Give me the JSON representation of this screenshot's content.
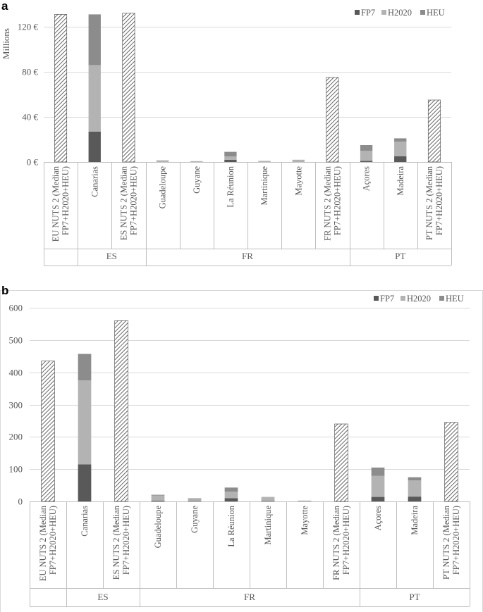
{
  "chart_data": [
    {
      "panel": "a",
      "type": "bar",
      "stacked": true,
      "ylabel": "Millions",
      "ylim": [
        0,
        130
      ],
      "yticks": [
        0,
        40,
        80,
        120
      ],
      "ytick_labels": [
        "0 €",
        "40 €",
        "80 €",
        "120 €"
      ],
      "legend": [
        "FP7",
        "H2020",
        "HEU"
      ],
      "legend_position": "top-right",
      "categories": [
        "EU NUTS 2 (Median FP7+H2020+HEU)",
        "Canarias",
        "ES NUTS 2 (Median FP7+H2020+HEU)",
        "Guadeloupe",
        "Guyane",
        "La Réunion",
        "Martinique",
        "Mayotte",
        "FR NUTS 2 (Median FP7+H2020+HEU)",
        "Açores",
        "Madeira",
        "PT NUTS 2 (Median FP7+H2020+HEU)"
      ],
      "groups": [
        {
          "label": "",
          "count": 1
        },
        {
          "label": "ES",
          "count": 2
        },
        {
          "label": "FR",
          "count": 6
        },
        {
          "label": "PT",
          "count": 3
        }
      ],
      "series": [
        {
          "name": "FP7",
          "values": [
            0,
            27,
            0,
            0,
            0,
            2,
            0,
            0,
            0,
            1,
            5,
            0
          ]
        },
        {
          "name": "H2020",
          "values": [
            0,
            59,
            0,
            1.5,
            0.3,
            3,
            1,
            2,
            0,
            9,
            13,
            0
          ]
        },
        {
          "name": "HEU",
          "values": [
            0,
            45,
            0,
            0,
            0,
            4,
            0,
            0,
            0,
            5,
            3,
            0
          ]
        },
        {
          "name": "Median",
          "values": [
            131,
            0,
            132,
            0,
            0,
            0,
            0,
            0,
            75,
            0,
            0,
            55
          ]
        }
      ]
    },
    {
      "panel": "b",
      "type": "bar",
      "stacked": true,
      "ylabel": "",
      "ylim": [
        0,
        600
      ],
      "yticks": [
        0,
        100,
        200,
        300,
        400,
        500,
        600
      ],
      "ytick_labels": [
        "0",
        "100",
        "200",
        "300",
        "400",
        "500",
        "600"
      ],
      "legend": [
        "FP7",
        "H2020",
        "HEU"
      ],
      "legend_position": "top-right",
      "categories": [
        "EU NUTS 2 (Median FP7+H2020+HEU)",
        "Canarias",
        "ES NUTS 2 (Median FP7+H2020+HEU)",
        "Guadeloupe",
        "Guyane",
        "La Réunion",
        "Martinique",
        "Mayotte",
        "FR NUTS 2 (Median FP7+H2020+HEU)",
        "Açores",
        "Madeira",
        "PT NUTS 2 (Median FP7+H2020+HEU)"
      ],
      "groups": [
        {
          "label": "",
          "count": 1
        },
        {
          "label": "ES",
          "count": 2
        },
        {
          "label": "FR",
          "count": 6
        },
        {
          "label": "PT",
          "count": 3
        }
      ],
      "series": [
        {
          "name": "FP7",
          "values": [
            0,
            115,
            0,
            2,
            1,
            10,
            1,
            0,
            0,
            14,
            15,
            0
          ]
        },
        {
          "name": "H2020",
          "values": [
            0,
            260,
            0,
            16,
            6,
            20,
            13,
            2,
            0,
            65,
            50,
            0
          ]
        },
        {
          "name": "HEU",
          "values": [
            0,
            82,
            0,
            1,
            2,
            13,
            0,
            0,
            0,
            26,
            10,
            0
          ]
        },
        {
          "name": "Median",
          "values": [
            435,
            0,
            560,
            0,
            0,
            0,
            0,
            0,
            240,
            0,
            0,
            245
          ]
        }
      ]
    }
  ],
  "colors": {
    "FP7": "#595959",
    "H2020": "#b3b3b3",
    "HEU": "#8c8c8c",
    "text": "#595959",
    "grid": "#d9d9d9"
  }
}
